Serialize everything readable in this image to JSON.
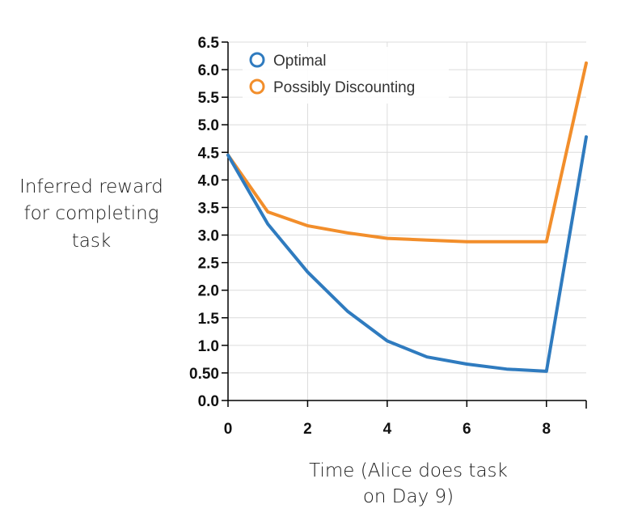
{
  "chart_data": {
    "type": "line",
    "ylabel": [
      "Inferred reward",
      "for completing",
      "task"
    ],
    "xlabel": [
      "Time (Alice does task",
      "on Day 9)"
    ],
    "xlim": [
      0,
      9
    ],
    "ylim": [
      0,
      6.5
    ],
    "x_ticks": [
      0,
      2,
      4,
      6,
      8
    ],
    "x_tick_labels": [
      "0",
      "2",
      "4",
      "6",
      "8"
    ],
    "y_ticks": [
      0,
      0.5,
      1,
      1.5,
      2,
      2.5,
      3,
      3.5,
      4,
      4.5,
      5,
      5.5,
      6,
      6.5
    ],
    "y_tick_labels": [
      "0.0",
      "0.50",
      "1.0",
      "1.5",
      "2.0",
      "2.5",
      "3.0",
      "3.5",
      "4.0",
      "4.5",
      "5.0",
      "5.5",
      "6.0",
      "6.5"
    ],
    "grid": true,
    "legend_position": "top-left",
    "x": [
      0,
      1,
      2,
      3,
      4,
      5,
      6,
      7,
      8,
      9
    ],
    "series": [
      {
        "name": "Optimal",
        "color": "#2f7bbf",
        "values": [
          4.45,
          3.2,
          2.33,
          1.62,
          1.08,
          0.79,
          0.66,
          0.57,
          0.53,
          4.78
        ]
      },
      {
        "name": "Possibly Discounting",
        "color": "#f28e2b",
        "values": [
          4.45,
          3.42,
          3.17,
          3.04,
          2.94,
          2.91,
          2.88,
          2.88,
          2.88,
          6.12
        ]
      }
    ]
  }
}
